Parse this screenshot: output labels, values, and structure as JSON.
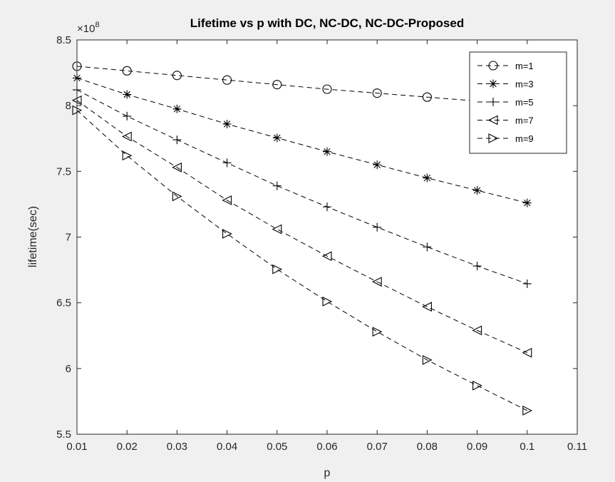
{
  "chart_data": {
    "type": "line",
    "title": "Lifetime vs p with DC, NC-DC, NC-DC-Proposed",
    "xlabel": "p",
    "ylabel": "lifetime(sec)",
    "y_exponent_label": "×10",
    "y_exponent_power": "8",
    "xlim": [
      0.01,
      0.11
    ],
    "ylim": [
      5.5,
      8.5
    ],
    "x_ticks": [
      "0.01",
      "0.02",
      "0.03",
      "0.04",
      "0.05",
      "0.06",
      "0.07",
      "0.08",
      "0.09",
      "0.1",
      "0.11"
    ],
    "y_ticks": [
      "5.5",
      "6",
      "6.5",
      "7",
      "7.5",
      "8",
      "8.5"
    ],
    "grid": false,
    "legend_position": "top-right",
    "line_style": "dashed",
    "line_color": "#000000",
    "x": [
      0.01,
      0.02,
      0.03,
      0.04,
      0.05,
      0.06,
      0.07,
      0.08,
      0.09,
      0.1
    ],
    "series": [
      {
        "name": "m=1",
        "marker": "circle",
        "values": [
          8.3,
          8.265,
          8.23,
          8.195,
          8.16,
          8.125,
          8.095,
          8.065,
          8.035,
          8.01
        ]
      },
      {
        "name": "m=3",
        "marker": "asterisk",
        "values": [
          8.21,
          8.085,
          7.975,
          7.86,
          7.755,
          7.65,
          7.55,
          7.45,
          7.355,
          7.26
        ]
      },
      {
        "name": "m=5",
        "marker": "plus",
        "values": [
          8.12,
          7.92,
          7.74,
          7.565,
          7.39,
          7.23,
          7.075,
          6.925,
          6.78,
          6.645
        ]
      },
      {
        "name": "m=7",
        "marker": "triangle-left",
        "values": [
          8.04,
          7.765,
          7.53,
          7.28,
          7.06,
          6.855,
          6.66,
          6.47,
          6.29,
          6.12
        ]
      },
      {
        "name": "m=9",
        "marker": "triangle-right",
        "values": [
          7.965,
          7.62,
          7.31,
          7.025,
          6.755,
          6.51,
          6.28,
          6.065,
          5.87,
          5.68
        ]
      }
    ]
  }
}
